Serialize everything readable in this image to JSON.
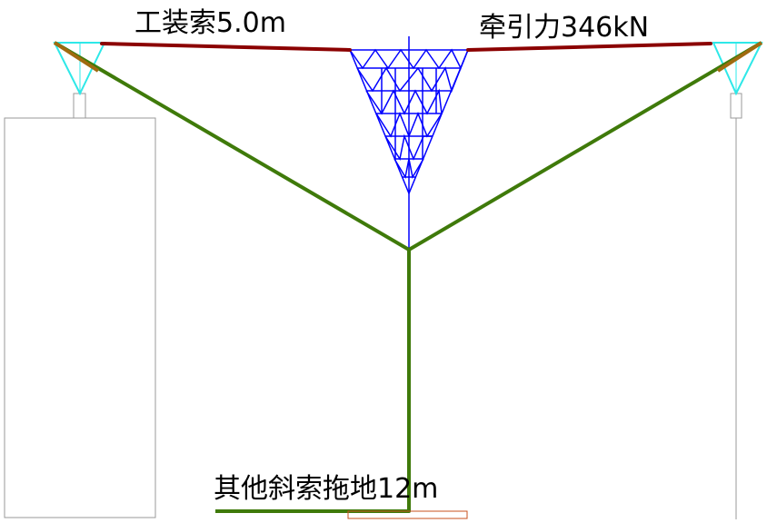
{
  "labels": {
    "top_left": "工装索5.0m",
    "top_right": "牵引力346kN",
    "bottom": "其他斜索拖地12m"
  }
}
